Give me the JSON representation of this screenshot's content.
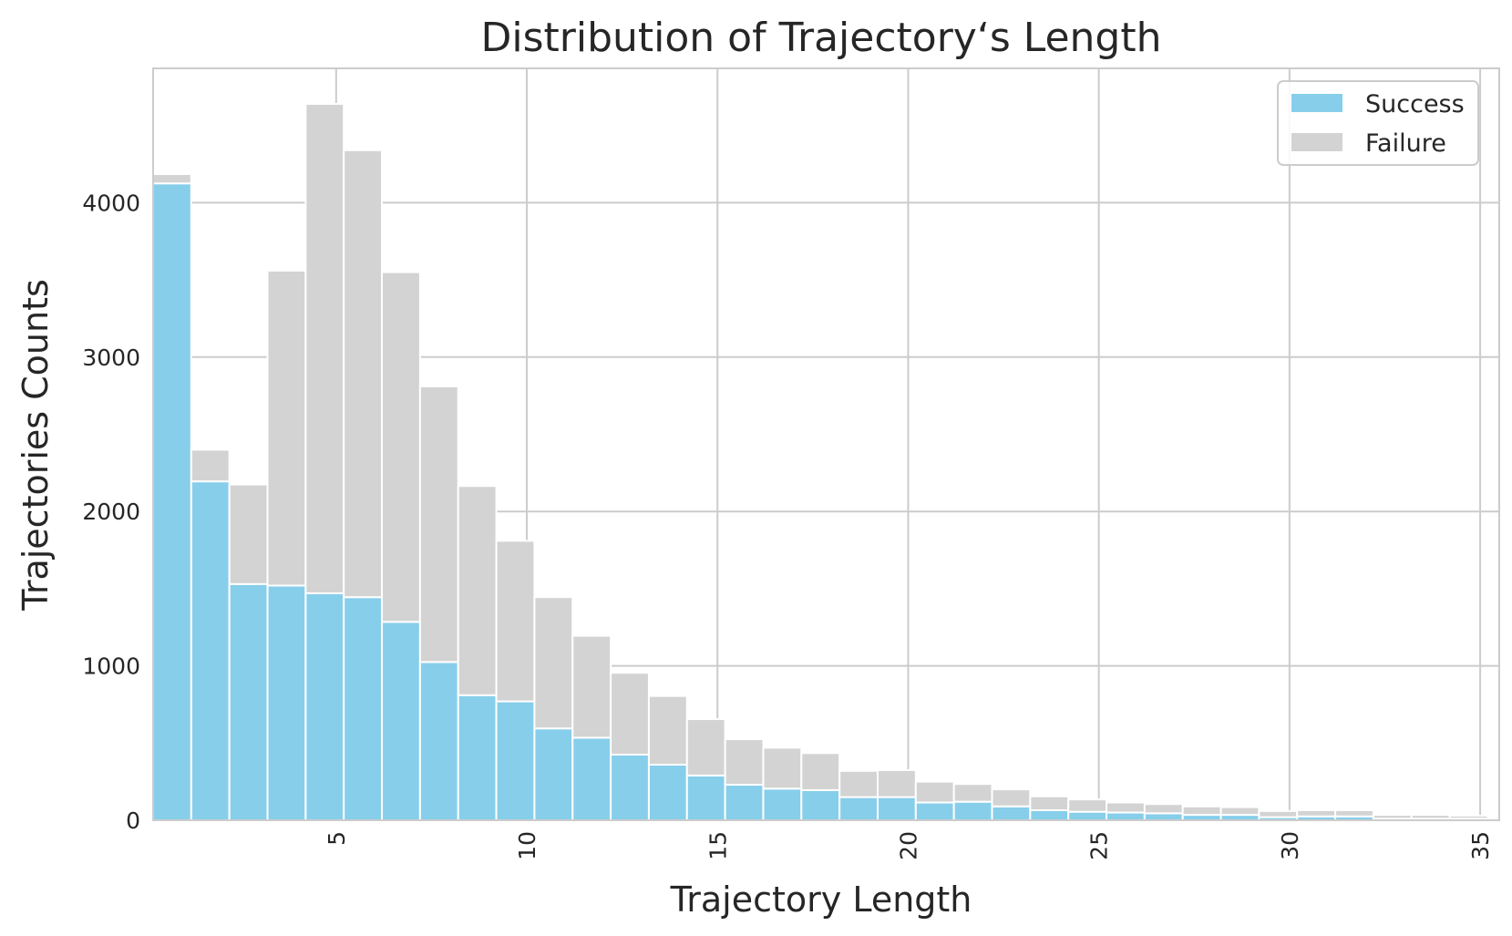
{
  "chart_data": {
    "type": "bar",
    "stacked": true,
    "title": "Distribution of Trajectory‘s Length",
    "xlabel": "Trajectory Length",
    "ylabel": "Trajectories Counts",
    "xlim": [
      0.2,
      35.5
    ],
    "ylim": [
      0,
      4870
    ],
    "xticks": [
      5,
      10,
      15,
      20,
      25,
      30,
      35
    ],
    "yticks": [
      0,
      1000,
      2000,
      3000,
      4000
    ],
    "grid": true,
    "legend_position": "top-right",
    "bin_start": 0.2,
    "bin_width": 1.0,
    "series": [
      {
        "name": "Success",
        "color": "#87ceeb",
        "values": [
          4125,
          2195,
          1530,
          1520,
          1470,
          1445,
          1285,
          1025,
          810,
          770,
          595,
          535,
          425,
          360,
          290,
          230,
          205,
          195,
          150,
          150,
          115,
          120,
          90,
          65,
          55,
          50,
          45,
          35,
          35,
          20,
          25,
          25,
          10,
          10,
          10
        ]
      },
      {
        "name": "Failure",
        "color": "#d3d3d3",
        "values": [
          60,
          205,
          645,
          2040,
          3170,
          2895,
          2265,
          1785,
          1355,
          1040,
          850,
          660,
          530,
          445,
          365,
          295,
          265,
          240,
          170,
          175,
          135,
          115,
          110,
          90,
          80,
          65,
          60,
          55,
          50,
          40,
          40,
          40,
          25,
          25,
          20
        ]
      }
    ]
  }
}
